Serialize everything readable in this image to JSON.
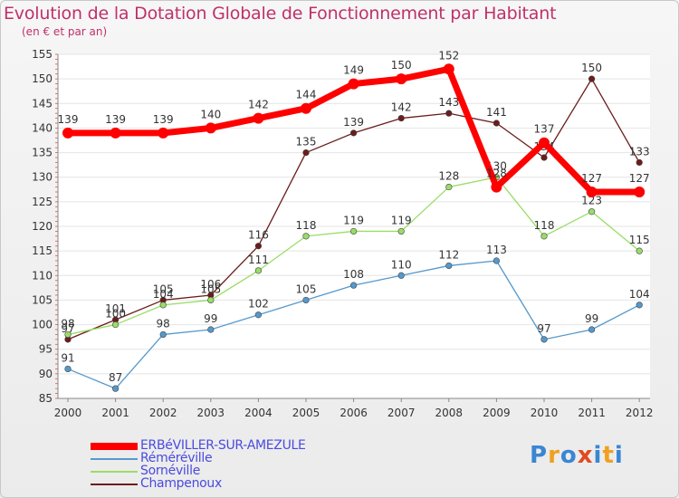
{
  "chart_data": {
    "type": "line",
    "title": "Evolution de la Dotation Globale de Fonctionnement par Habitant",
    "subtitle": "(en € et par an)",
    "xlabel": "",
    "ylabel": "",
    "categories": [
      "2000",
      "2001",
      "2002",
      "2003",
      "2004",
      "2005",
      "2006",
      "2007",
      "2008",
      "2009",
      "2010",
      "2011",
      "2012"
    ],
    "ylim": [
      85,
      155
    ],
    "yticks": [
      85,
      90,
      95,
      100,
      105,
      110,
      115,
      120,
      125,
      130,
      135,
      140,
      145,
      150,
      155
    ],
    "grid": "horizontal",
    "legend_position": "bottom-left",
    "series": [
      {
        "name": "Champenoux",
        "color": "#6b1c1c",
        "values": [
          97,
          101,
          105,
          106,
          116,
          135,
          139,
          142,
          143,
          141,
          134,
          150,
          133
        ]
      },
      {
        "name": "Sornéville",
        "color": "#99dd66",
        "values": [
          98,
          100,
          104,
          105,
          111,
          118,
          119,
          119,
          128,
          130,
          118,
          123,
          115
        ]
      },
      {
        "name": "Réméréville",
        "color": "#5599cc",
        "values": [
          91,
          87,
          98,
          99,
          102,
          105,
          108,
          110,
          112,
          113,
          97,
          99,
          104
        ]
      },
      {
        "name": "ERBéVILLER-SUR-AMEZULE",
        "color": "#ff0000",
        "values": [
          139,
          139,
          139,
          140,
          142,
          144,
          149,
          150,
          152,
          128,
          137,
          127,
          127
        ]
      }
    ],
    "legend_order": [
      "ERBéVILLER-SUR-AMEZULE",
      "Réméréville",
      "Sornéville",
      "Champenoux"
    ]
  },
  "logo": {
    "letters": [
      "P",
      "r",
      "o",
      "x",
      "i",
      "t",
      "i"
    ],
    "colors": [
      "#3a86d4",
      "#f0a020",
      "#3a86d4",
      "#e04a20",
      "#3a86d4",
      "#f0a020",
      "#3a86d4"
    ]
  }
}
